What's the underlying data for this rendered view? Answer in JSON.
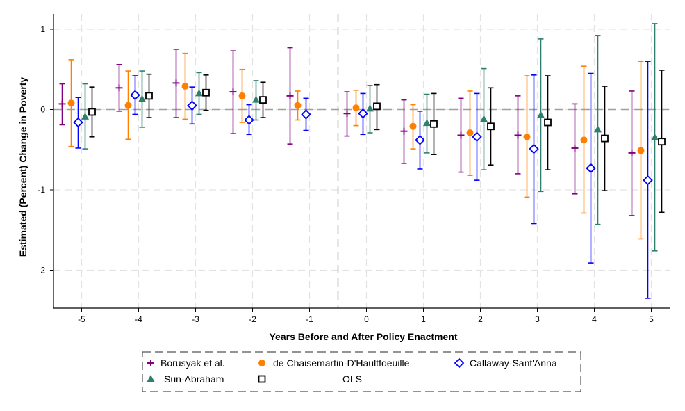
{
  "chart_data": {
    "type": "scatter",
    "subtype": "event-study coefficient plot with 95% confidence intervals",
    "title": "",
    "xlabel": "Years Before and After Policy Enactment",
    "ylabel": "Estimated (Percent) Change in Poverty",
    "x_ticks": [
      -5,
      -4,
      -3,
      -2,
      -1,
      0,
      1,
      2,
      3,
      4,
      5
    ],
    "y_ticks": [
      -2,
      -1,
      0,
      1
    ],
    "xlim": [
      -5.5,
      5.5
    ],
    "ylim": [
      -2.5,
      1.2
    ],
    "grid": true,
    "reference_lines": {
      "y": 0,
      "x": -0.5
    },
    "legend_position": "bottom",
    "series": [
      {
        "name": "Borusyak et al.",
        "color": "#800080",
        "marker": "plus",
        "x": [
          -5,
          -4,
          -3,
          -2,
          -1,
          0,
          1,
          2,
          3,
          4,
          5
        ],
        "y": [
          0.07,
          0.27,
          0.33,
          0.22,
          0.17,
          -0.05,
          -0.27,
          -0.32,
          -0.32,
          -0.48,
          -0.54
        ],
        "ci_low": [
          -0.19,
          -0.02,
          -0.1,
          -0.3,
          -0.43,
          -0.33,
          -0.67,
          -0.78,
          -0.8,
          -1.05,
          -1.32
        ],
        "ci_high": [
          0.32,
          0.56,
          0.75,
          0.73,
          0.77,
          0.22,
          0.12,
          0.14,
          0.17,
          0.07,
          0.23
        ]
      },
      {
        "name": "de Chaisemartin-D'Haultfoeuille",
        "color": "#ff8000",
        "marker": "circle",
        "x": [
          -5,
          -4,
          -3,
          -2,
          -1,
          0,
          1,
          2,
          3,
          4,
          5
        ],
        "y": [
          0.08,
          0.05,
          0.29,
          0.17,
          0.05,
          0.02,
          -0.21,
          -0.29,
          -0.34,
          -0.38,
          -0.51
        ],
        "ci_low": [
          -0.46,
          -0.37,
          -0.12,
          -0.16,
          -0.13,
          -0.2,
          -0.49,
          -0.82,
          -1.09,
          -1.29,
          -1.61
        ],
        "ci_high": [
          0.62,
          0.48,
          0.7,
          0.5,
          0.23,
          0.24,
          0.06,
          0.23,
          0.42,
          0.54,
          0.6
        ]
      },
      {
        "name": "Callaway-Sant'Anna",
        "color": "#0000ff",
        "marker": "diamond",
        "x": [
          -5,
          -4,
          -3,
          -2,
          -1,
          0,
          1,
          2,
          3,
          4,
          5
        ],
        "y": [
          -0.16,
          0.18,
          0.05,
          -0.13,
          -0.06,
          -0.05,
          -0.38,
          -0.34,
          -0.49,
          -0.73,
          -0.88
        ],
        "ci_low": [
          -0.48,
          -0.06,
          -0.18,
          -0.31,
          -0.26,
          -0.31,
          -0.74,
          -0.88,
          -1.42,
          -1.91,
          -2.35
        ],
        "ci_high": [
          0.15,
          0.42,
          0.28,
          0.06,
          0.14,
          0.2,
          -0.02,
          0.2,
          0.43,
          0.45,
          0.6
        ]
      },
      {
        "name": "Sun-Abraham",
        "color": "#2f7f6f",
        "marker": "triangle",
        "x": [
          -5,
          -4,
          -3,
          -2,
          -1,
          0,
          1,
          2,
          3,
          4,
          5
        ],
        "y": [
          -0.09,
          0.13,
          0.2,
          0.12,
          null,
          0.01,
          -0.17,
          -0.12,
          -0.07,
          -0.25,
          -0.35
        ],
        "ci_low": [
          -0.49,
          -0.22,
          -0.06,
          -0.13,
          null,
          -0.29,
          -0.54,
          -0.75,
          -1.02,
          -1.43,
          -1.76
        ],
        "ci_high": [
          0.32,
          0.48,
          0.46,
          0.36,
          null,
          0.3,
          0.19,
          0.51,
          0.88,
          0.92,
          1.07
        ]
      },
      {
        "name": "OLS",
        "color": "#000000",
        "marker": "square",
        "x": [
          -5,
          -4,
          -3,
          -2,
          -1,
          0,
          1,
          2,
          3,
          4,
          5
        ],
        "y": [
          -0.03,
          0.17,
          0.21,
          0.12,
          null,
          0.04,
          -0.18,
          -0.21,
          -0.16,
          -0.36,
          -0.4
        ],
        "ci_low": [
          -0.34,
          -0.1,
          -0.01,
          -0.1,
          null,
          -0.25,
          -0.56,
          -0.69,
          -0.75,
          -1.01,
          -1.28
        ],
        "ci_high": [
          0.28,
          0.44,
          0.43,
          0.34,
          null,
          0.31,
          0.2,
          0.27,
          0.42,
          0.29,
          0.49
        ]
      }
    ]
  }
}
